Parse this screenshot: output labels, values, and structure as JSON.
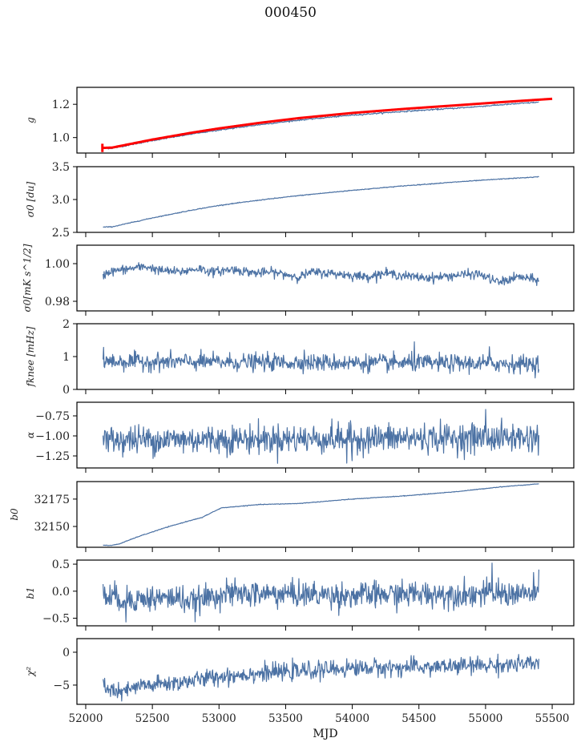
{
  "title": "000450",
  "chart_data": {
    "type": "line",
    "title": "000450",
    "xlabel": "MJD",
    "xlim": [
      51934,
      55662
    ],
    "xticks": [
      52000,
      52500,
      53000,
      53500,
      54000,
      54500,
      55000,
      55500
    ],
    "xtick_labels": [
      "52000",
      "52500",
      "53000",
      "53500",
      "54000",
      "54500",
      "55000",
      "55500"
    ],
    "x_start": 52130,
    "x_end": 55400,
    "n_points": 820,
    "line_color": "#4c72a4",
    "panels": [
      {
        "id": "g",
        "ylabel": "g",
        "ylim": [
          0.907,
          1.302
        ],
        "yticks": [
          1.0,
          1.2
        ],
        "ytick_labels": [
          "1.0",
          "1.2"
        ],
        "series": [
          {
            "name": "g",
            "color": "#4c72a4",
            "x": [
              52130,
              52200,
              52500,
              52800,
              53000,
              53300,
              53600,
              54000,
              54400,
              54800,
              55100,
              55400
            ],
            "y": [
              0.935,
              0.936,
              0.982,
              1.022,
              1.045,
              1.077,
              1.105,
              1.135,
              1.158,
              1.178,
              1.196,
              1.213
            ],
            "noise": 0.002
          },
          {
            "name": "g-model",
            "color": "#ff0000",
            "x": [
              52130,
              52200,
              52500,
              52800,
              53000,
              53300,
              53600,
              54000,
              54400,
              54800,
              55100,
              55500
            ],
            "y": [
              0.938,
              0.94,
              0.988,
              1.03,
              1.055,
              1.088,
              1.117,
              1.148,
              1.173,
              1.195,
              1.212,
              1.233
            ],
            "noise": 0.0,
            "errorbar_at": 52125,
            "errorbar_halfwidth": 0.025
          }
        ]
      },
      {
        "id": "sigma0-du",
        "ylabel": "σ0 [du]",
        "ylim": [
          2.5,
          3.5
        ],
        "yticks": [
          2.5,
          3.0,
          3.5
        ],
        "ytick_labels": [
          "2.5",
          "3.0",
          "3.5"
        ],
        "series": [
          {
            "name": "sigma0_du",
            "color": "#4c72a4",
            "x": [
              52130,
              52200,
              52500,
              52800,
              53000,
              53300,
              53600,
              54000,
              54400,
              54800,
              55100,
              55400
            ],
            "y": [
              2.58,
              2.585,
              2.72,
              2.84,
              2.91,
              2.99,
              3.06,
              3.14,
              3.21,
              3.27,
              3.31,
              3.345
            ],
            "noise": 0.003
          }
        ]
      },
      {
        "id": "sigma0-mk",
        "ylabel": "σ0[mK s^1/2]",
        "ylim": [
          0.9749,
          1.0098
        ],
        "yticks": [
          0.98,
          1.0
        ],
        "ytick_labels": [
          "0.98",
          "1.00"
        ],
        "series": [
          {
            "name": "sigma0_mK",
            "color": "#4c72a4",
            "x": [
              52130,
              52160,
              52300,
              52450,
              52550,
              52700,
              52850,
              52950,
              53100,
              53280,
              53400,
              53600,
              53700,
              53900,
              54100,
              54250,
              54450,
              54600,
              54800,
              54950,
              55100,
              55250,
              55400
            ],
            "y": [
              0.9935,
              0.9955,
              0.997,
              0.9985,
              0.9965,
              0.9955,
              0.9975,
              0.9955,
              0.997,
              0.995,
              0.9955,
              0.993,
              0.9955,
              0.9945,
              0.993,
              0.995,
              0.993,
              0.9925,
              0.994,
              0.9945,
              0.99,
              0.993,
              0.991
            ],
            "noise": 0.0012
          }
        ]
      },
      {
        "id": "fknee",
        "ylabel": "fknee [mHz]",
        "ylim": [
          0,
          2
        ],
        "yticks": [
          0,
          1,
          2
        ],
        "ytick_labels": [
          "0",
          "1",
          "2"
        ],
        "series": [
          {
            "name": "fknee",
            "color": "#4c72a4",
            "x": [
              52130,
              55400
            ],
            "y": [
              0.85,
              0.78
            ],
            "noise": 0.13,
            "spikes": [
              [
                52135,
                1.28
              ],
              [
                54465,
                1.45
              ],
              [
                53640,
                1.2
              ],
              [
                55030,
                1.3
              ]
            ]
          }
        ]
      },
      {
        "id": "alpha",
        "ylabel": "α",
        "ylim": [
          -1.4,
          -0.58
        ],
        "yticks": [
          -1.25,
          -1.0,
          -0.75
        ],
        "ytick_labels": [
          "−1.25",
          "−1.00",
          "−0.75"
        ],
        "series": [
          {
            "name": "alpha",
            "color": "#4c72a4",
            "x": [
              52130,
              55400
            ],
            "y": [
              -1.05,
              -1.02
            ],
            "noise": 0.09,
            "spikes": [
              [
                55000,
                -0.67
              ],
              [
                53960,
                -1.34
              ],
              [
                54000,
                -1.31
              ]
            ]
          }
        ]
      },
      {
        "id": "b0",
        "ylabel": "b0",
        "ylim": [
          32131,
          32191
        ],
        "yticks": [
          32150,
          32175
        ],
        "ytick_labels": [
          "32150",
          "32175"
        ],
        "series": [
          {
            "name": "b0",
            "color": "#4c72a4",
            "x": [
              52130,
              52180,
              52250,
              52400,
              52600,
              52800,
              52870,
              52950,
              53020,
              53300,
              53600,
              54000,
              54400,
              54800,
              55100,
              55400
            ],
            "y": [
              32133,
              32132.5,
              32134,
              32141,
              32149,
              32156,
              32158,
              32163,
              32167,
              32170,
              32171,
              32175,
              32178,
              32182,
              32186,
              32189
            ],
            "noise": 0.15
          }
        ]
      },
      {
        "id": "b1",
        "ylabel": "b1",
        "ylim": [
          -0.64,
          0.575
        ],
        "yticks": [
          -0.5,
          0.0,
          0.5
        ],
        "ytick_labels": [
          "−0.5",
          "0.0",
          "0.5"
        ],
        "series": [
          {
            "name": "b1",
            "color": "#4c72a4",
            "x": [
              52130,
              52300,
              52700,
              52800,
              53000,
              53500,
              54000,
              54500,
              55000,
              55400
            ],
            "y": [
              -0.08,
              -0.15,
              -0.12,
              -0.22,
              -0.05,
              -0.05,
              -0.08,
              -0.05,
              -0.05,
              -0.05
            ],
            "noise": 0.12,
            "spikes": [
              [
                55050,
                0.52
              ],
              [
                55400,
                0.4
              ],
              [
                52300,
                -0.57
              ]
            ]
          }
        ]
      },
      {
        "id": "chi2",
        "ylabel": "χ²",
        "ylim": [
          -7.93,
          2.07
        ],
        "yticks": [
          -5,
          0
        ],
        "ytick_labels": [
          "−5",
          "0"
        ],
        "series": [
          {
            "name": "chi2",
            "color": "#4c72a4",
            "x": [
              52130,
              52250,
              52400,
              52700,
              53000,
              53300,
              53700,
              54000,
              54500,
              55000,
              55400
            ],
            "y": [
              -5.0,
              -6.3,
              -5.2,
              -4.6,
              -3.7,
              -3.2,
              -2.8,
              -2.4,
              -2.3,
              -2.0,
              -1.8
            ],
            "noise": 0.65
          }
        ]
      }
    ]
  }
}
